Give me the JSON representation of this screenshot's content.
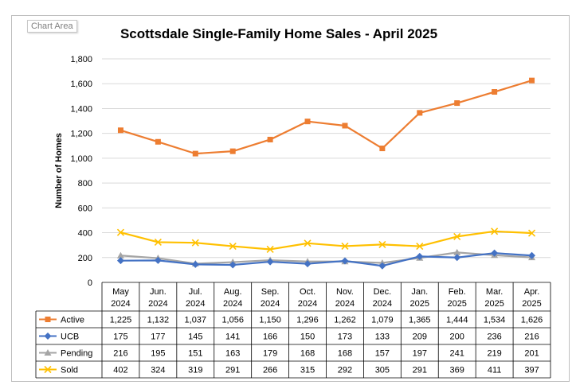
{
  "chart_area_label": "Chart Area",
  "chart_data": {
    "type": "line",
    "title": "Scottsdale Single-Family Home Sales - April 2025",
    "xlabel": "",
    "ylabel": "Number of Homes",
    "ylim": [
      0,
      1800
    ],
    "yticks": [
      "0",
      "200",
      "400",
      "600",
      "800",
      "1,000",
      "1,200",
      "1,400",
      "1,600",
      "1,800"
    ],
    "grid": true,
    "legend": "data-table",
    "categories": [
      [
        "May",
        "2024"
      ],
      [
        "Jun.",
        "2024"
      ],
      [
        "Jul.",
        "2024"
      ],
      [
        "Aug.",
        "2024"
      ],
      [
        "Sep.",
        "2024"
      ],
      [
        "Oct.",
        "2024"
      ],
      [
        "Nov.",
        "2024"
      ],
      [
        "Dec.",
        "2024"
      ],
      [
        "Jan.",
        "2025"
      ],
      [
        "Feb.",
        "2025"
      ],
      [
        "Mar.",
        "2025"
      ],
      [
        "Apr.",
        "2025"
      ]
    ],
    "series": [
      {
        "name": "Active",
        "color": "#ed7d31",
        "marker": "square",
        "values": [
          1225,
          1132,
          1037,
          1056,
          1150,
          1296,
          1262,
          1079,
          1365,
          1444,
          1534,
          1626
        ],
        "labels": [
          "1,225",
          "1,132",
          "1,037",
          "1,056",
          "1,150",
          "1,296",
          "1,262",
          "1,079",
          "1,365",
          "1,444",
          "1,534",
          "1,626"
        ]
      },
      {
        "name": "UCB",
        "color": "#4472c4",
        "marker": "diamond",
        "values": [
          175,
          177,
          145,
          141,
          166,
          150,
          173,
          133,
          209,
          200,
          236,
          216
        ],
        "labels": [
          "175",
          "177",
          "145",
          "141",
          "166",
          "150",
          "173",
          "133",
          "209",
          "200",
          "236",
          "216"
        ]
      },
      {
        "name": "Pending",
        "color": "#a5a5a5",
        "marker": "triangle",
        "values": [
          216,
          195,
          151,
          163,
          179,
          168,
          168,
          157,
          197,
          241,
          219,
          201
        ],
        "labels": [
          "216",
          "195",
          "151",
          "163",
          "179",
          "168",
          "168",
          "157",
          "197",
          "241",
          "219",
          "201"
        ]
      },
      {
        "name": "Sold",
        "color": "#ffc000",
        "marker": "x",
        "values": [
          402,
          324,
          319,
          291,
          266,
          315,
          292,
          305,
          291,
          369,
          411,
          397
        ],
        "labels": [
          "402",
          "324",
          "319",
          "291",
          "266",
          "315",
          "292",
          "305",
          "291",
          "369",
          "411",
          "397"
        ]
      }
    ]
  }
}
